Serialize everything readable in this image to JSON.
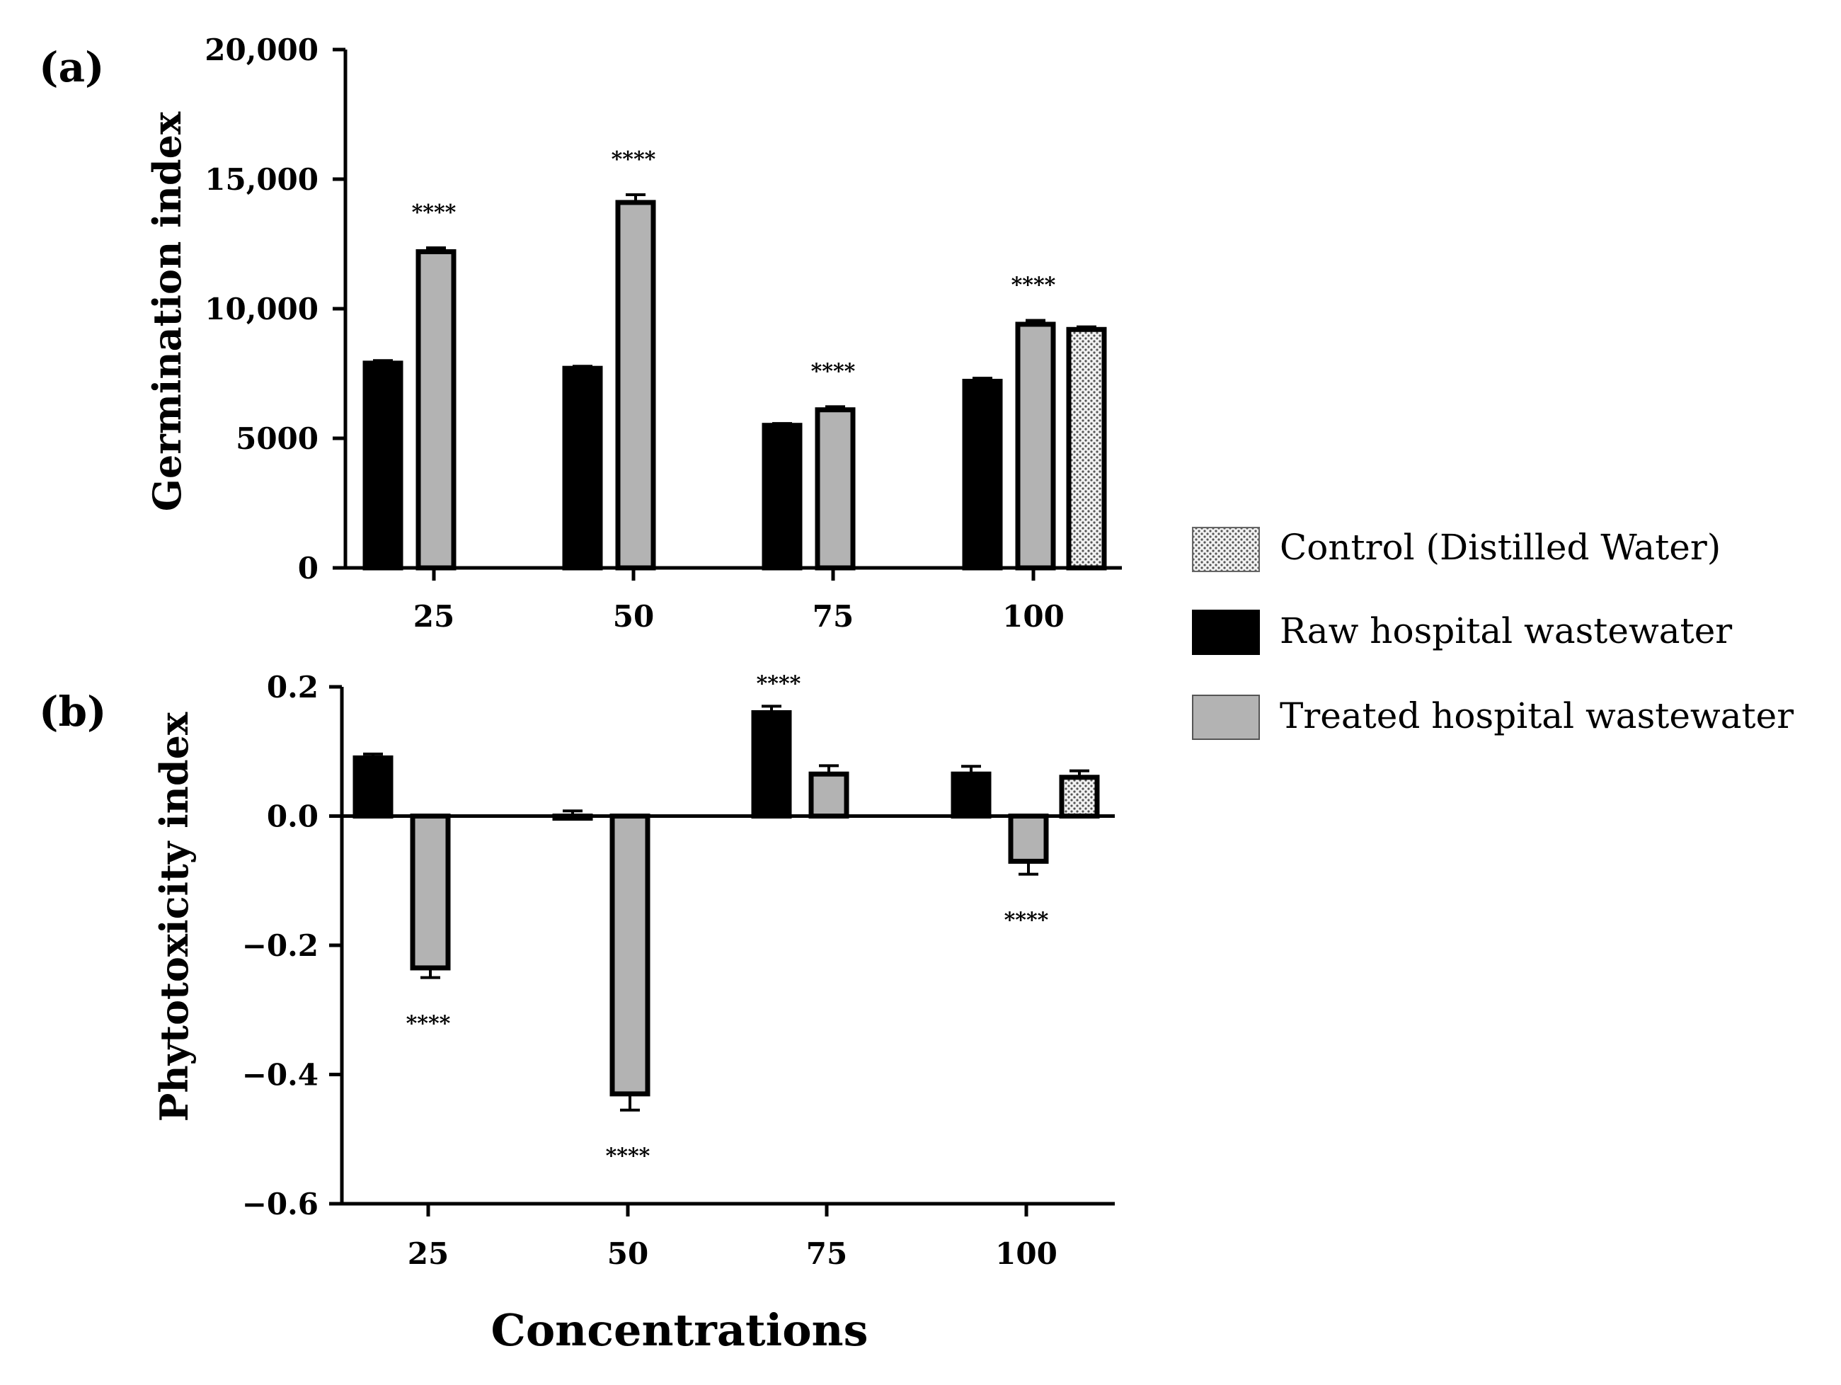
{
  "chart_data": [
    {
      "panel": "(a)",
      "type": "bar",
      "ylabel": "Germination index",
      "ylim": [
        0,
        20000
      ],
      "yticks": [
        0,
        5000,
        10000,
        15000,
        20000
      ],
      "ytick_labels": [
        "0",
        "5000",
        "10,000",
        "15,000",
        "20,000"
      ],
      "categories": [
        "25",
        "50",
        "75",
        "100"
      ],
      "series": [
        {
          "name": "Raw hospital wastewater",
          "values": [
            7900,
            7700,
            5500,
            7200
          ],
          "errors": [
            100,
            80,
            70,
            120
          ]
        },
        {
          "name": "Treated hospital wastewater",
          "values": [
            12200,
            14100,
            6100,
            9400
          ],
          "errors": [
            150,
            300,
            120,
            150
          ]
        },
        {
          "name": "Control (Distilled Water)",
          "values": [
            null,
            null,
            null,
            9200
          ],
          "errors": [
            null,
            null,
            null,
            100
          ]
        }
      ],
      "significance": [
        "****",
        "****",
        "****",
        "****"
      ],
      "grid": false
    },
    {
      "panel": "(b)",
      "type": "bar",
      "ylabel": "Phytotoxicity index",
      "xlabel": "Concentrations",
      "ylim": [
        -0.6,
        0.2
      ],
      "yticks": [
        -0.6,
        -0.4,
        -0.2,
        0.0,
        0.2
      ],
      "ytick_labels": [
        "−0.6",
        "−0.4",
        "−0.2",
        "0.0",
        "0.2"
      ],
      "categories": [
        "25",
        "50",
        "75",
        "100"
      ],
      "series": [
        {
          "name": "Raw hospital wastewater",
          "values": [
            0.09,
            0.0,
            0.16,
            0.065
          ],
          "errors": [
            0.006,
            0.008,
            0.01,
            0.012
          ]
        },
        {
          "name": "Treated hospital wastewater",
          "values": [
            -0.235,
            -0.43,
            0.065,
            -0.07
          ],
          "errors": [
            0.015,
            0.025,
            0.013,
            0.02
          ]
        },
        {
          "name": "Control (Distilled Water)",
          "values": [
            null,
            null,
            null,
            0.06
          ],
          "errors": [
            null,
            null,
            null,
            0.01
          ]
        }
      ],
      "significance": [
        "****",
        "****",
        "****",
        "****"
      ],
      "grid": false
    }
  ],
  "legend": {
    "placement": "right",
    "items": [
      {
        "label": "Control (Distilled Water)",
        "pattern": "dotted"
      },
      {
        "label": "Raw hospital wastewater",
        "color": "#000000"
      },
      {
        "label": "Treated hospital wastewater",
        "color": "#b3b3b3"
      }
    ]
  },
  "colors": {
    "raw": "#000000",
    "treated": "#b3b3b3",
    "control": "#d9d9d9"
  }
}
